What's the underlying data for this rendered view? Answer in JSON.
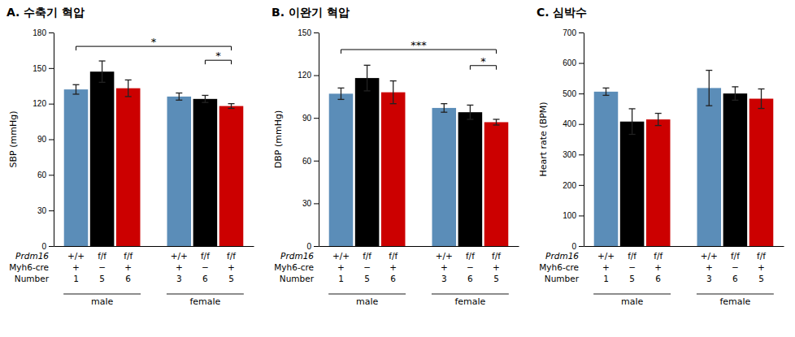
{
  "chart_data": [
    {
      "type": "bar",
      "title": "A.  수축기  혁압",
      "ylabel": "SBP (mmHg)",
      "ylim": [
        0,
        180
      ],
      "yticks": [
        0,
        30,
        60,
        90,
        120,
        150,
        180
      ],
      "grid": false,
      "categories": [
        "male",
        "female"
      ],
      "series": [
        {
          "color": "#5B8DB8",
          "values": [
            132,
            126
          ],
          "errors": [
            4,
            3
          ]
        },
        {
          "color": "#000000",
          "values": [
            147,
            124
          ],
          "errors": [
            9,
            3
          ]
        },
        {
          "color": "#CC0000",
          "values": [
            133,
            118
          ],
          "errors": [
            7,
            2
          ]
        }
      ],
      "bar_label_rows": [
        {
          "label": "Prdm16",
          "labels": [
            [
              "+/+",
              "f/f",
              "f/f"
            ],
            [
              "+/+",
              "f/f",
              "f/f"
            ]
          ]
        },
        {
          "label": "Myh6-cre",
          "labels": [
            [
              "+",
              "−",
              "+"
            ],
            [
              "+",
              "−",
              "+"
            ]
          ]
        },
        {
          "label": "Number",
          "labels": [
            [
              1,
              5,
              6
            ],
            [
              3,
              6,
              5
            ]
          ]
        }
      ],
      "annotations": [
        {
          "type": "bracket",
          "from": [
            0,
            0
          ],
          "to": [
            1,
            2
          ],
          "y": 168.3,
          "label": "*"
        },
        {
          "type": "bracket",
          "from": [
            1,
            1
          ],
          "to": [
            1,
            2
          ],
          "y": 156.6,
          "label": "*"
        }
      ]
    },
    {
      "type": "bar",
      "title": "B.  이완기  혁압",
      "ylabel": "DBP (mmHg)",
      "ylim": [
        0,
        150
      ],
      "yticks": [
        0,
        30,
        60,
        90,
        120,
        150
      ],
      "grid": false,
      "categories": [
        "male",
        "female"
      ],
      "series": [
        {
          "color": "#5B8DB8",
          "values": [
            107,
            97
          ],
          "errors": [
            4,
            3
          ]
        },
        {
          "color": "#000000",
          "values": [
            118,
            94
          ],
          "errors": [
            9,
            5
          ]
        },
        {
          "color": "#CC0000",
          "values": [
            108,
            87
          ],
          "errors": [
            8,
            2
          ]
        }
      ],
      "bar_label_rows": [
        {
          "label": "Prdm16",
          "labels": [
            [
              "+/+",
              "f/f",
              "f/f"
            ],
            [
              "+/+",
              "f/f",
              "f/f"
            ]
          ]
        },
        {
          "label": "Myh6-cre",
          "labels": [
            [
              "+",
              "−",
              "+"
            ],
            [
              "+",
              "−",
              "+"
            ]
          ]
        },
        {
          "label": "Number",
          "labels": [
            [
              1,
              5,
              6
            ],
            [
              3,
              6,
              5
            ]
          ]
        }
      ],
      "annotations": [
        {
          "type": "bracket",
          "from": [
            0,
            0
          ],
          "to": [
            1,
            2
          ],
          "y": 138,
          "label": "***"
        },
        {
          "type": "bracket",
          "from": [
            1,
            1
          ],
          "to": [
            1,
            2
          ],
          "y": 126.75,
          "label": "*"
        }
      ]
    },
    {
      "type": "bar",
      "title": "C.  심박수",
      "ylabel": "Heart rate (BPM)",
      "ylim": [
        0,
        700
      ],
      "yticks": [
        0,
        100,
        200,
        300,
        400,
        500,
        600,
        700
      ],
      "grid": false,
      "categories": [
        "male",
        "female"
      ],
      "series": [
        {
          "color": "#5B8DB8",
          "values": [
            506,
            518
          ],
          "errors": [
            12,
            58
          ]
        },
        {
          "color": "#000000",
          "values": [
            408,
            500
          ],
          "errors": [
            42,
            22
          ]
        },
        {
          "color": "#CC0000",
          "values": [
            415,
            483
          ],
          "errors": [
            20,
            32
          ]
        }
      ],
      "bar_label_rows": [
        {
          "label": "Prdm16",
          "labels": [
            [
              "+/+",
              "f/f",
              "f/f"
            ],
            [
              "+/+",
              "f/f",
              "f/f"
            ]
          ]
        },
        {
          "label": "Myh6-cre",
          "labels": [
            [
              "+",
              "−",
              "+"
            ],
            [
              "+",
              "−",
              "+"
            ]
          ]
        },
        {
          "label": "Number",
          "labels": [
            [
              1,
              5,
              6
            ],
            [
              3,
              6,
              5
            ]
          ]
        }
      ],
      "annotations": []
    }
  ]
}
